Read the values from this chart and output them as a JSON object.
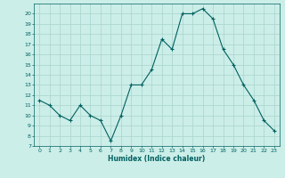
{
  "x": [
    0,
    1,
    2,
    3,
    4,
    5,
    6,
    7,
    8,
    9,
    10,
    11,
    12,
    13,
    14,
    15,
    16,
    17,
    18,
    19,
    20,
    21,
    22,
    23
  ],
  "y": [
    11.5,
    11.0,
    10.0,
    9.5,
    11.0,
    10.0,
    9.5,
    7.5,
    10.0,
    13.0,
    13.0,
    14.5,
    17.5,
    16.5,
    20.0,
    20.0,
    20.5,
    19.5,
    16.5,
    15.0,
    13.0,
    11.5,
    9.5,
    8.5
  ],
  "line_color": "#006060",
  "marker": "+",
  "marker_size": 3,
  "marker_linewidth": 0.8,
  "line_width": 0.8,
  "xlabel": "Humidex (Indice chaleur)",
  "xlim": [
    -0.5,
    23.5
  ],
  "ylim": [
    7,
    21
  ],
  "yticks": [
    7,
    8,
    9,
    10,
    11,
    12,
    13,
    14,
    15,
    16,
    17,
    18,
    19,
    20
  ],
  "xticks": [
    0,
    1,
    2,
    3,
    4,
    5,
    6,
    7,
    8,
    9,
    10,
    11,
    12,
    13,
    14,
    15,
    16,
    17,
    18,
    19,
    20,
    21,
    22,
    23
  ],
  "bg_color": "#cceee8",
  "grid_color": "#a8d4cc",
  "font_color": "#006060",
  "label_fontsize": 5.5,
  "tick_fontsize": 4.5,
  "xlabel_fontsize": 5.5
}
